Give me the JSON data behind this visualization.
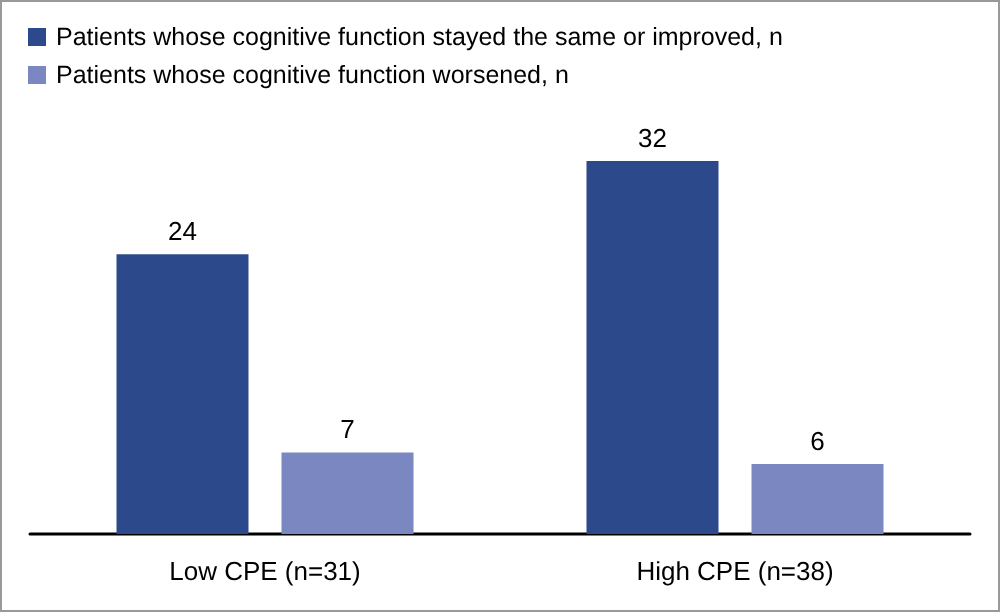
{
  "chart_data": {
    "type": "bar",
    "categories": [
      "Low CPE (n=31)",
      "High CPE (n=38)"
    ],
    "series": [
      {
        "name": "Patients whose cognitive function stayed the same or improved, n",
        "color": "#2c4a8b",
        "values": [
          24,
          32
        ]
      },
      {
        "name": "Patients whose cognitive function worsened, n",
        "color": "#7b87c0",
        "values": [
          7,
          6
        ]
      }
    ],
    "data_labels": true,
    "legend": "top left"
  }
}
